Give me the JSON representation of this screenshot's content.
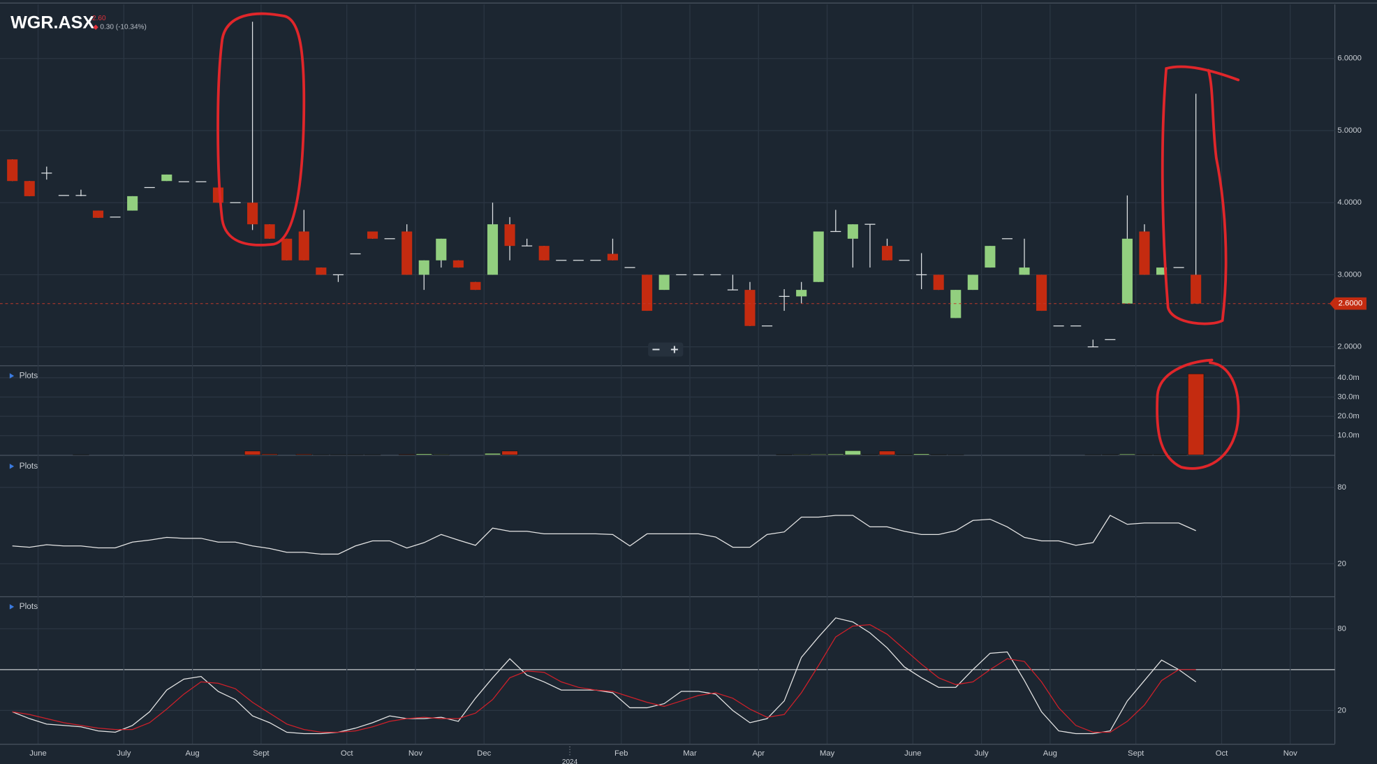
{
  "header": {
    "symbol": "WGR.ASX",
    "price": "2.60",
    "change": "0.30 (-10.34%)"
  },
  "chart_data": [
    {
      "type": "candlestick",
      "up_color": "#92cf7f",
      "down_color": "#c42b10",
      "x": [
        0,
        1,
        2,
        3,
        4,
        5,
        6,
        7,
        8,
        9,
        10,
        11,
        12,
        13,
        14,
        15,
        16,
        17,
        18,
        19,
        20,
        21,
        22,
        23,
        24,
        25,
        26,
        27,
        28,
        29,
        30,
        31,
        32,
        33,
        34,
        35,
        36,
        37,
        38,
        39,
        40,
        41,
        42,
        43,
        44,
        45,
        46,
        47,
        48,
        49,
        50,
        51,
        52,
        53,
        54,
        55,
        56,
        57,
        58,
        59,
        60,
        61,
        62,
        63,
        64,
        65,
        66,
        67,
        68,
        69
      ],
      "open": [
        4.6,
        4.3,
        4.41,
        4.1,
        4.1,
        3.89,
        3.8,
        3.89,
        4.21,
        4.3,
        4.29,
        4.29,
        4.21,
        4.0,
        4.0,
        3.7,
        3.5,
        3.6,
        3.1,
        3.0,
        3.29,
        3.6,
        3.5,
        3.6,
        3.0,
        3.2,
        3.2,
        2.9,
        3.0,
        3.7,
        3.4,
        3.4,
        3.2,
        3.2,
        3.2,
        3.29,
        3.1,
        3.0,
        2.79,
        3.0,
        3.0,
        3.0,
        2.79,
        2.79,
        2.29,
        2.7,
        2.7,
        2.9,
        3.6,
        3.5,
        3.7,
        3.4,
        3.2,
        3.0,
        3.0,
        2.4,
        2.79,
        3.1,
        3.5,
        3.0,
        3.0,
        2.29,
        2.29,
        2.0,
        2.1,
        2.6,
        3.6,
        3.0,
        3.1,
        3.0
      ],
      "high": [
        4.6,
        4.3,
        4.5,
        4.1,
        4.18,
        3.89,
        3.8,
        4.09,
        4.21,
        4.39,
        4.29,
        4.29,
        4.21,
        4.0,
        6.51,
        3.7,
        3.5,
        3.9,
        3.1,
        3.0,
        3.29,
        3.6,
        3.5,
        3.7,
        3.2,
        3.5,
        3.2,
        2.9,
        4.0,
        3.8,
        3.5,
        3.4,
        3.2,
        3.2,
        3.2,
        3.5,
        3.1,
        3.0,
        3.0,
        3.0,
        3.0,
        3.0,
        3.0,
        2.9,
        2.29,
        2.8,
        2.9,
        3.6,
        3.9,
        3.7,
        3.7,
        3.5,
        3.2,
        3.3,
        3.0,
        2.79,
        3.0,
        3.4,
        3.5,
        3.5,
        3.0,
        2.29,
        2.29,
        2.1,
        2.1,
        4.1,
        3.7,
        3.1,
        3.1,
        5.51
      ],
      "low": [
        4.3,
        4.09,
        4.32,
        4.1,
        4.09,
        3.79,
        3.8,
        3.89,
        4.21,
        4.3,
        4.29,
        4.29,
        4.0,
        4.0,
        3.62,
        3.5,
        3.2,
        3.2,
        3.0,
        2.9,
        3.29,
        3.5,
        3.5,
        3.0,
        2.79,
        3.1,
        3.1,
        2.79,
        3.0,
        3.2,
        3.4,
        3.2,
        3.2,
        3.2,
        3.2,
        3.2,
        3.1,
        2.5,
        2.79,
        3.0,
        3.0,
        3.0,
        2.79,
        2.29,
        2.29,
        2.5,
        2.6,
        2.9,
        3.6,
        3.1,
        3.1,
        3.2,
        3.2,
        2.8,
        2.79,
        2.4,
        2.79,
        3.1,
        3.5,
        3.0,
        2.5,
        2.29,
        2.29,
        2.0,
        2.1,
        2.6,
        3.0,
        3.0,
        3.1,
        2.6
      ],
      "close": [
        4.3,
        4.09,
        4.41,
        4.1,
        4.1,
        3.79,
        3.8,
        4.09,
        4.21,
        4.39,
        4.29,
        4.29,
        4.0,
        4.0,
        3.7,
        3.5,
        3.2,
        3.2,
        3.0,
        3.0,
        3.29,
        3.5,
        3.5,
        3.0,
        3.2,
        3.5,
        3.1,
        2.79,
        3.7,
        3.4,
        3.4,
        3.2,
        3.2,
        3.2,
        3.2,
        3.2,
        3.1,
        2.5,
        3.0,
        3.0,
        3.0,
        3.0,
        2.79,
        2.29,
        2.29,
        2.7,
        2.79,
        3.6,
        3.6,
        3.7,
        3.7,
        3.2,
        3.2,
        3.0,
        2.79,
        2.79,
        3.0,
        3.4,
        3.5,
        3.1,
        2.5,
        2.29,
        2.29,
        2.0,
        2.1,
        3.5,
        3.0,
        3.1,
        3.1,
        2.6
      ],
      "xlim": [
        -0.72,
        77.1
      ],
      "ylim": [
        1.75,
        6.75
      ],
      "yticks": [
        {
          "value": 2,
          "label": "2.0000"
        },
        {
          "value": 3,
          "label": "3.0000"
        },
        {
          "value": 4,
          "label": "4.0000"
        },
        {
          "value": 5,
          "label": "5.0000"
        },
        {
          "value": 6,
          "label": "6.0000"
        }
      ],
      "last_price": {
        "value": 2.6,
        "label": "2.6000"
      },
      "grid": true
    },
    {
      "type": "bar",
      "label": "Plots",
      "x": [
        0,
        1,
        2,
        3,
        4,
        5,
        6,
        7,
        8,
        9,
        10,
        11,
        12,
        13,
        14,
        15,
        16,
        17,
        18,
        19,
        20,
        21,
        22,
        23,
        24,
        25,
        26,
        27,
        28,
        29,
        30,
        31,
        32,
        33,
        34,
        35,
        36,
        37,
        38,
        39,
        40,
        41,
        42,
        43,
        44,
        45,
        46,
        47,
        48,
        49,
        50,
        51,
        52,
        53,
        54,
        55,
        56,
        57,
        58,
        59,
        60,
        61,
        62,
        63,
        64,
        65,
        66,
        67,
        68,
        69
      ],
      "values": [
        0,
        0,
        0,
        0,
        0.1,
        0,
        0,
        0,
        0,
        0,
        0,
        0,
        0,
        0,
        2.0,
        0.5,
        0,
        0.4,
        0.1,
        0.1,
        0.1,
        0.1,
        0,
        0.3,
        0.6,
        0.3,
        0,
        0,
        0.8,
        2.0,
        0,
        0,
        0,
        0,
        0,
        0,
        0,
        0,
        0,
        0,
        0,
        0,
        0,
        0,
        0,
        0.2,
        0.3,
        0.4,
        0.5,
        2.2,
        0.2,
        2.0,
        0.2,
        0.6,
        0.2,
        0.1,
        0,
        0,
        0,
        0,
        0,
        0,
        0,
        0.1,
        0.2,
        0.5,
        0.2,
        0.2,
        0.2,
        42
      ],
      "xlim": [
        -0.72,
        77.1
      ],
      "ylim": [
        0,
        45.5
      ],
      "yticks": [
        {
          "value": 10,
          "label": "10.0m"
        },
        {
          "value": 20,
          "label": "20.0m"
        },
        {
          "value": 30,
          "label": "30.0m"
        },
        {
          "value": 40,
          "label": "40.0m"
        }
      ]
    },
    {
      "type": "line",
      "label": "Plots",
      "x": [
        0,
        1,
        2,
        3,
        4,
        5,
        6,
        7,
        8,
        9,
        10,
        11,
        12,
        13,
        14,
        15,
        16,
        17,
        18,
        19,
        20,
        21,
        22,
        23,
        24,
        25,
        26,
        27,
        28,
        29,
        30,
        31,
        32,
        33,
        34,
        35,
        36,
        37,
        38,
        39,
        40,
        41,
        42,
        43,
        44,
        45,
        46,
        47,
        48,
        49,
        50,
        51,
        52,
        53,
        54,
        55,
        56,
        57,
        58,
        59,
        60,
        61,
        62,
        63,
        64,
        65,
        66,
        67,
        68,
        69
      ],
      "series": [
        {
          "color": "#e6e6e6",
          "values": [
            34,
            33,
            35,
            34,
            34,
            32.5,
            32.5,
            37,
            38.6,
            40.7,
            40,
            40,
            37,
            37,
            34,
            32,
            29,
            29,
            27.6,
            27.6,
            34,
            38,
            38,
            32.4,
            36.6,
            43,
            38.6,
            34.5,
            48,
            45.5,
            45.5,
            43.5,
            43.5,
            43.5,
            43.5,
            43,
            34,
            43.5,
            43.5,
            43.5,
            43.5,
            41,
            33,
            33,
            43,
            45,
            56.6,
            56.6,
            58,
            58,
            49,
            49,
            45.5,
            43,
            43,
            46,
            54,
            55,
            49,
            40.7,
            38,
            38,
            34.5,
            36.6,
            58,
            51,
            52,
            52,
            52,
            46
          ]
        }
      ],
      "xlim": [
        -0.72,
        77.1
      ],
      "ylim": [
        -5.5,
        104.1
      ],
      "yticks": [
        20,
        80
      ]
    },
    {
      "type": "line",
      "label": "Plots",
      "x": [
        0,
        1,
        2,
        3,
        4,
        5,
        6,
        7,
        8,
        9,
        10,
        11,
        12,
        13,
        14,
        15,
        16,
        17,
        18,
        19,
        20,
        21,
        22,
        23,
        24,
        25,
        26,
        27,
        28,
        29,
        30,
        31,
        32,
        33,
        34,
        35,
        36,
        37,
        38,
        39,
        40,
        41,
        42,
        43,
        44,
        45,
        46,
        47,
        48,
        49,
        50,
        51,
        52,
        53,
        54,
        55,
        56,
        57,
        58,
        59,
        60,
        61,
        62,
        63,
        64,
        65,
        66,
        67,
        68,
        69
      ],
      "series": [
        {
          "color": "#e6e6e6",
          "values": [
            19,
            14,
            10,
            9,
            8,
            5,
            4,
            9,
            19,
            35,
            43,
            45,
            34,
            28,
            16,
            11,
            4,
            3,
            3,
            4,
            7,
            11,
            16,
            14,
            14,
            15,
            12,
            29,
            44,
            58,
            46,
            41,
            35,
            35,
            35,
            33,
            22,
            22,
            25,
            34,
            34,
            32,
            20,
            11,
            14,
            27,
            59,
            74,
            88,
            85,
            77,
            66,
            52,
            44,
            37,
            37,
            50,
            62,
            63,
            42,
            19,
            5,
            3,
            3,
            5,
            27,
            42,
            57,
            50,
            41
          ]
        },
        {
          "color": "#d0202a",
          "values": [
            19,
            17,
            14,
            11,
            9,
            7,
            6,
            6,
            11,
            21,
            32,
            41,
            40,
            36,
            26,
            18,
            10,
            6,
            4,
            4,
            5,
            8,
            12,
            14,
            15,
            14,
            14,
            18,
            28,
            44,
            49,
            48,
            41,
            37,
            35,
            34,
            30,
            26,
            23,
            27,
            31,
            33,
            29,
            21,
            15,
            17,
            33,
            53,
            74,
            82,
            83,
            76,
            65,
            54,
            44,
            39,
            41,
            50,
            58,
            56,
            41,
            22,
            9,
            4,
            4,
            12,
            24,
            42,
            50,
            50
          ]
        }
      ],
      "xlim": [
        -0.72,
        77.1
      ],
      "ylim": [
        -4.5,
        102.6
      ],
      "yticks": [
        20,
        80
      ],
      "hlines": [
        50
      ],
      "xticks": [
        {
          "value": 1.5,
          "label": "June"
        },
        {
          "value": 6.5,
          "label": "July"
        },
        {
          "value": 10.5,
          "label": "Aug"
        },
        {
          "value": 14.5,
          "label": "Sept"
        },
        {
          "value": 19.5,
          "label": "Oct"
        },
        {
          "value": 23.5,
          "label": "Nov"
        },
        {
          "value": 27.5,
          "label": "Dec"
        },
        {
          "value": 35.5,
          "label": "Feb"
        },
        {
          "value": 39.5,
          "label": "Mar"
        },
        {
          "value": 43.5,
          "label": "Apr"
        },
        {
          "value": 47.5,
          "label": "May"
        },
        {
          "value": 52.5,
          "label": "June"
        },
        {
          "value": 56.5,
          "label": "July"
        },
        {
          "value": 60.5,
          "label": "Aug"
        },
        {
          "value": 65.5,
          "label": "Sept"
        },
        {
          "value": 70.5,
          "label": "Oct"
        },
        {
          "value": 74.5,
          "label": "Nov"
        }
      ],
      "year_ticks": [
        {
          "value": 32.5,
          "label": "2024"
        }
      ]
    }
  ]
}
